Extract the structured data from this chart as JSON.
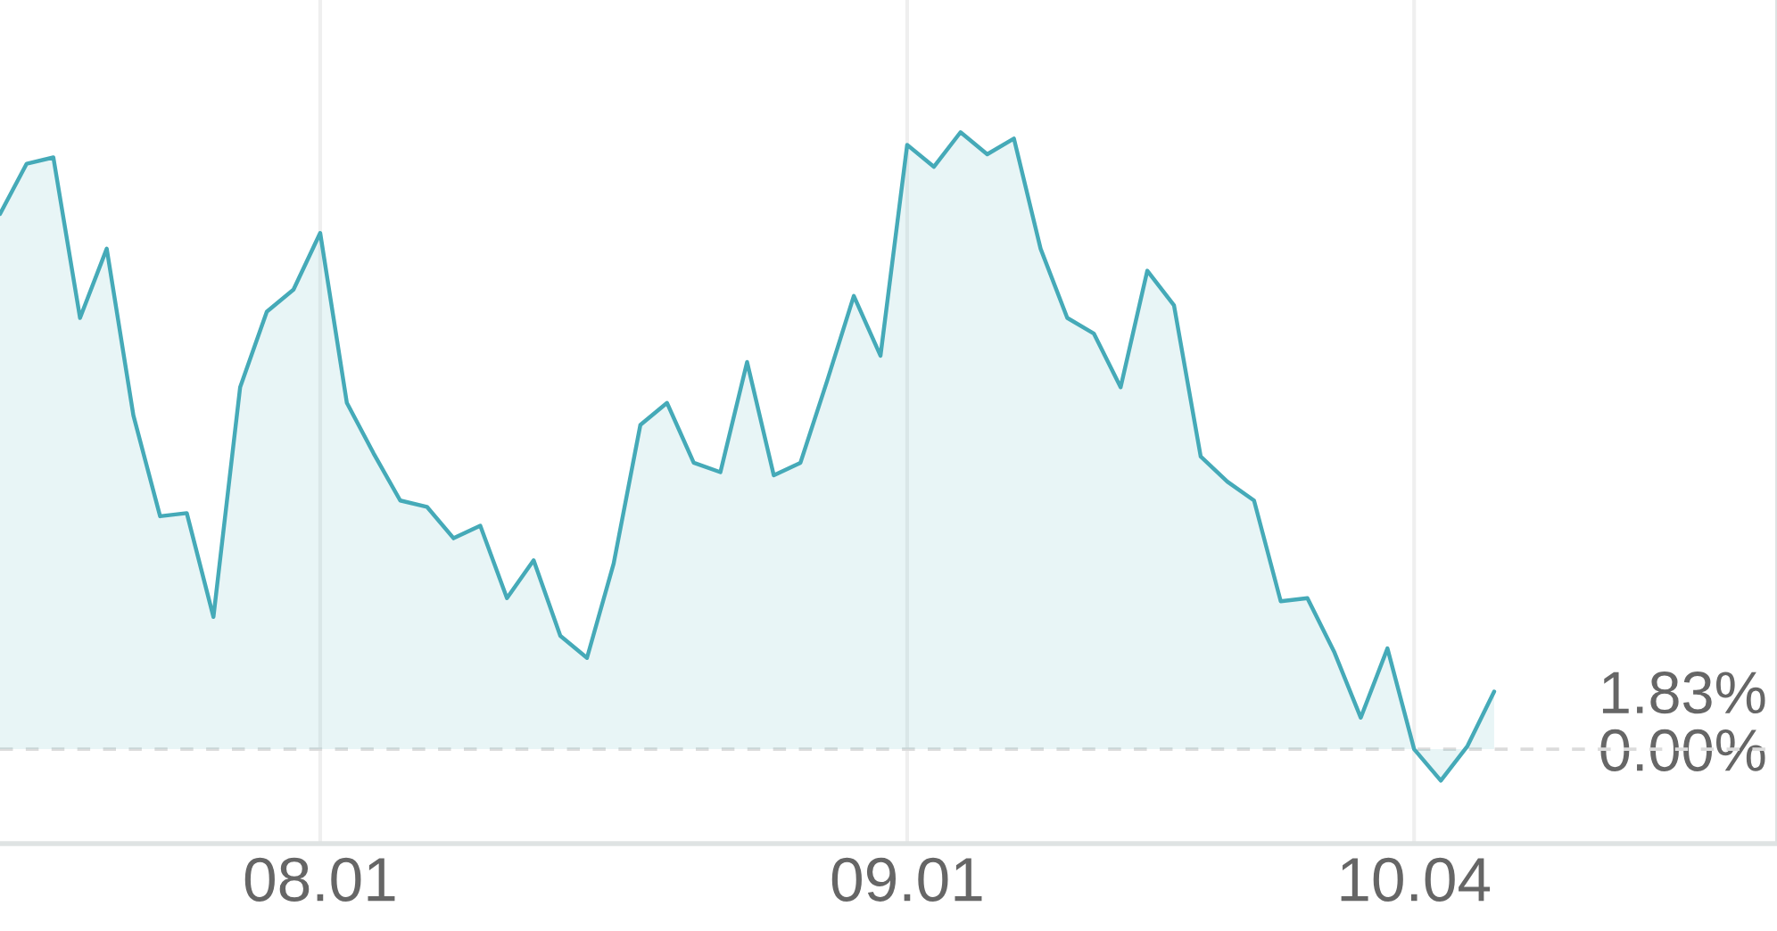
{
  "chart_data": {
    "type": "area",
    "categories": [
      null,
      null,
      null,
      null,
      null,
      null,
      null,
      null,
      null,
      null,
      null,
      null,
      "08.01",
      null,
      null,
      null,
      null,
      null,
      null,
      null,
      null,
      null,
      null,
      null,
      null,
      null,
      null,
      null,
      null,
      null,
      null,
      null,
      null,
      null,
      "09.01",
      null,
      null,
      null,
      null,
      null,
      null,
      null,
      null,
      null,
      null,
      null,
      null,
      null,
      null,
      null,
      null,
      null,
      null,
      "10.04",
      null,
      null,
      null
    ],
    "values": [
      17.0,
      18.6,
      18.8,
      13.7,
      15.9,
      10.6,
      7.4,
      7.5,
      4.2,
      11.5,
      13.9,
      14.6,
      16.4,
      11.0,
      9.4,
      7.9,
      7.7,
      6.7,
      7.1,
      4.8,
      6.0,
      3.6,
      2.9,
      5.9,
      10.3,
      11.0,
      9.1,
      8.8,
      12.3,
      8.7,
      9.1,
      11.7,
      14.4,
      12.5,
      19.2,
      18.5,
      19.6,
      18.9,
      19.4,
      15.9,
      13.7,
      13.2,
      11.5,
      15.2,
      14.1,
      9.3,
      8.5,
      7.9,
      4.7,
      4.8,
      3.1,
      1.0,
      3.2,
      0.0,
      -1.0,
      0.1,
      1.83
    ],
    "color": "#45aab8",
    "ylim": [
      -3.0,
      23.8
    ],
    "yticks": [
      {
        "value": 0,
        "label": "0.00%"
      },
      {
        "value": 1.83,
        "label": "1.83%"
      }
    ],
    "ref_lines": [
      {
        "axis": "y",
        "value": 0,
        "color": "#dcdcdc",
        "line_style": "dashed"
      }
    ],
    "grid": "x"
  }
}
